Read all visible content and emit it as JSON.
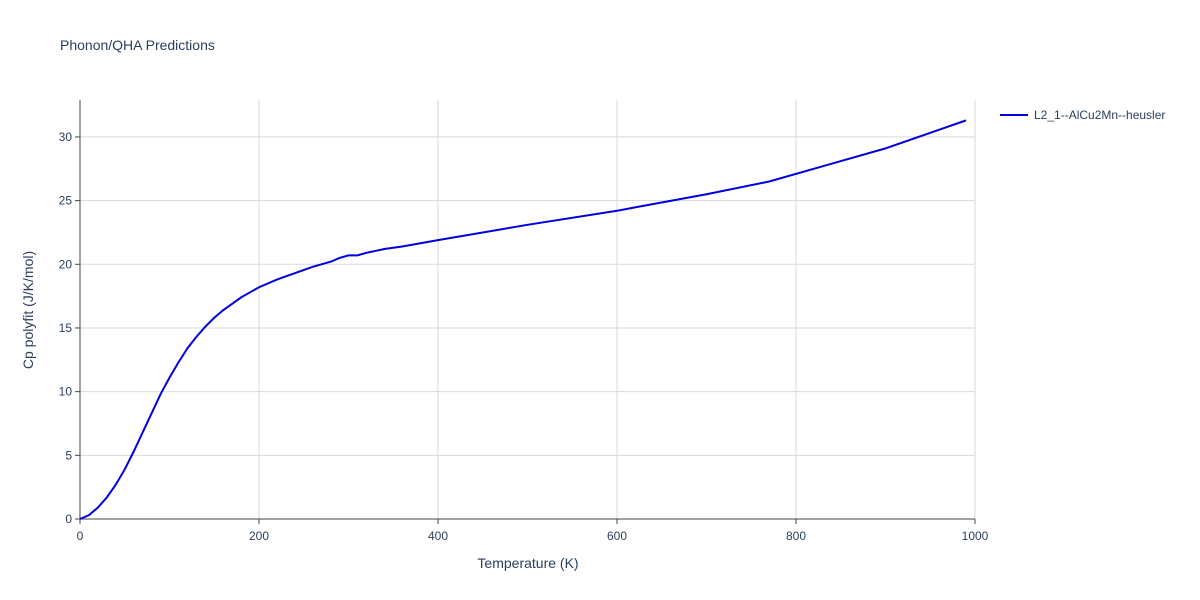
{
  "chart_data": {
    "type": "line",
    "title": "Phonon/QHA Predictions",
    "x_label": "Temperature (K)",
    "y_label": "Cp polyfit (J/K/mol)",
    "x": [
      0,
      10,
      20,
      30,
      40,
      50,
      60,
      70,
      80,
      90,
      100,
      110,
      120,
      130,
      140,
      150,
      160,
      170,
      180,
      190,
      200,
      220,
      240,
      260,
      280,
      290,
      300,
      310,
      320,
      340,
      360,
      400,
      500,
      600,
      630,
      700,
      770,
      835,
      900,
      990
    ],
    "series": [
      {
        "name": "L2_1--AlCu2Mn--heusler",
        "color": "#0000dd",
        "values": [
          0,
          0.3,
          0.9,
          1.7,
          2.7,
          3.9,
          5.3,
          6.8,
          8.3,
          9.8,
          11.1,
          12.3,
          13.4,
          14.3,
          15.1,
          15.8,
          16.4,
          16.9,
          17.4,
          17.8,
          18.2,
          18.8,
          19.3,
          19.8,
          20.2,
          20.5,
          20.7,
          20.7,
          20.9,
          21.2,
          21.4,
          21.9,
          23.1,
          24.2,
          24.6,
          25.5,
          26.5,
          27.8,
          29.1,
          31.3
        ]
      }
    ],
    "xlim": [
      0,
      1000
    ],
    "ylim": [
      0,
      32.9
    ],
    "xticks": [
      0,
      200,
      400,
      600,
      800,
      1000
    ],
    "yticks": [
      0,
      5,
      10,
      15,
      20,
      25,
      30
    ],
    "grid": true,
    "legend": "right"
  }
}
